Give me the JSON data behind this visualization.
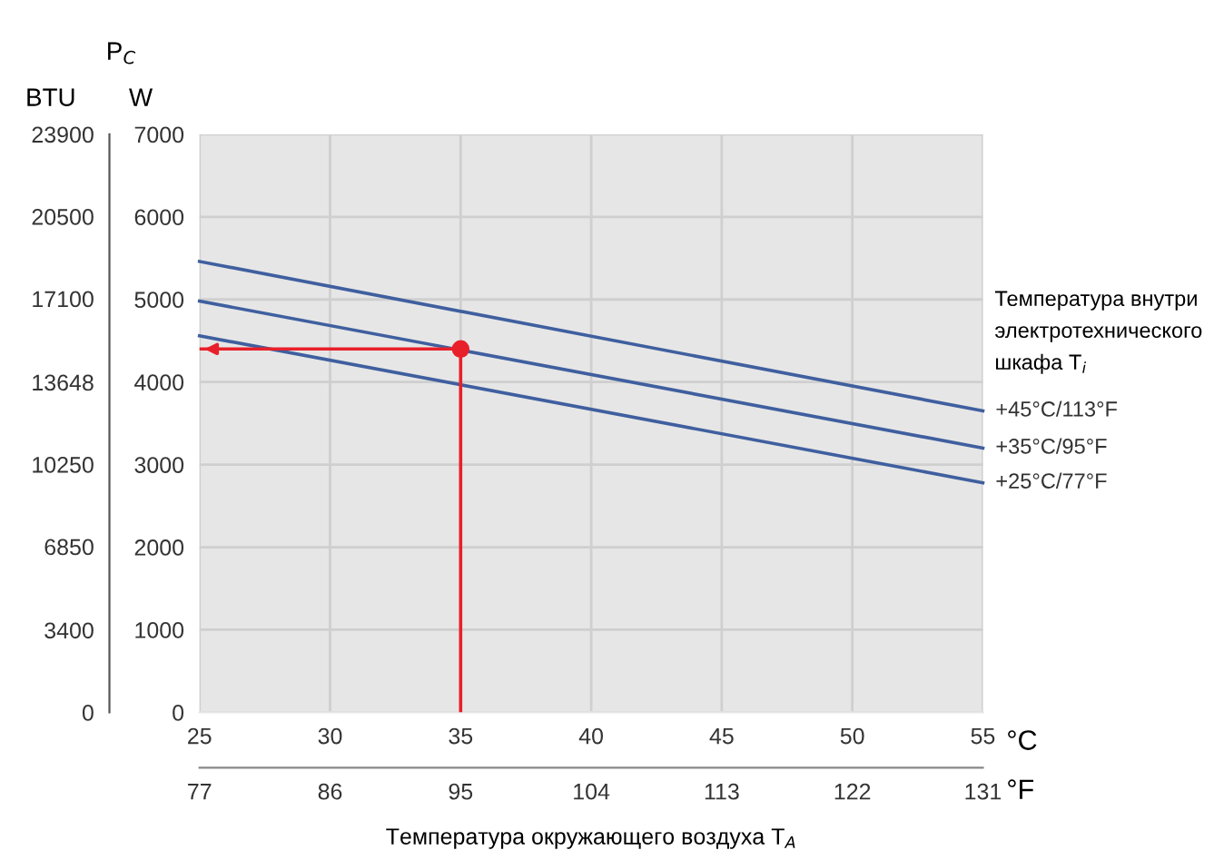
{
  "chart_data": {
    "type": "line",
    "title": "P$_{C}$",
    "ylabel": "W",
    "y2label": "BTU",
    "xlabel": "°C",
    "x2label": "°F",
    "legend_title": "Температура внутри электротехнического шкафа T$_{i}$",
    "annotations": [
      "Температура окружающего воздуха T$_{A}$"
    ],
    "x": [
      25,
      55
    ],
    "series": [
      {
        "name": "+45°C/113°F",
        "color": "#3f5f9f",
        "values": [
          5460,
          3650
        ]
      },
      {
        "name": "+35°C/95°F",
        "color": "#3f5f9f",
        "values": [
          4980,
          3200
        ]
      },
      {
        "name": "+25°C/77°F",
        "color": "#3f5f9f",
        "values": [
          4560,
          2780
        ]
      },
      {
        "type": "scatter",
        "color": "#e8202a",
        "x": [
          35
        ],
        "values": [
          4400
        ],
        "marker": "circle"
      }
    ],
    "xlim": [
      25,
      55
    ],
    "xticks": [
      25,
      30,
      35,
      40,
      45,
      50,
      55
    ],
    "x2lim": [
      77,
      131
    ],
    "x2ticks": [
      77,
      86,
      95,
      104,
      113,
      122,
      131
    ],
    "ylim": [
      0,
      7000
    ],
    "yticks": [
      0,
      1000,
      2000,
      3000,
      4000,
      5000,
      6000,
      7000
    ],
    "y2lim": [
      0,
      23900
    ],
    "y2ticks": [
      0,
      3400,
      6850,
      10250,
      13648,
      17100,
      20500,
      23900
    ],
    "ref_lines": [
      {
        "axis": "y",
        "value": 4400,
        "color": "#e8202a"
      },
      {
        "axis": "x",
        "value": 35,
        "color": "#e8202a"
      }
    ],
    "grid": true,
    "line_style": "solid"
  }
}
